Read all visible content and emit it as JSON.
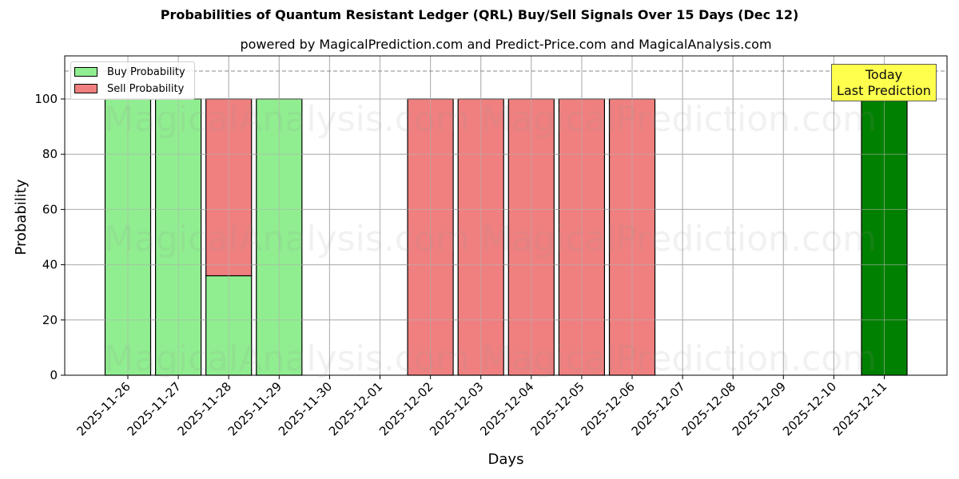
{
  "title": "Probabilities of Quantum Resistant Ledger (QRL) Buy/Sell Signals Over 15 Days (Dec 12)",
  "subtitle": "powered by MagicalPrediction.com and Predict-Price.com and MagicalAnalysis.com",
  "legend": {
    "buy_label": "Buy Probability",
    "sell_label": "Sell Probability"
  },
  "annotation": {
    "line1": "Today",
    "line2": "Last Prediction"
  },
  "watermarks": [
    "MagicalAnalysis.com",
    "MagicalPrediction.com"
  ],
  "colors": {
    "buy": "#90ee90",
    "sell": "#f08080",
    "today": "#008000",
    "annotation_bg": "#ffff44",
    "grid": "#b0b0b0"
  },
  "chart_data": {
    "type": "bar",
    "stacked": true,
    "title": "Probabilities of Quantum Resistant Ledger (QRL) Buy/Sell Signals Over 15 Days (Dec 12)",
    "subtitle": "powered by MagicalPrediction.com and Predict-Price.com and MagicalAnalysis.com",
    "xlabel": "Days",
    "ylabel": "Probability",
    "ylim": [
      0,
      115
    ],
    "yticks": [
      0,
      20,
      40,
      60,
      80,
      100
    ],
    "grid": true,
    "legend_position": "upper left",
    "reference_line": {
      "y": 110,
      "style": "dashed"
    },
    "categories": [
      "2025-11-26",
      "2025-11-27",
      "2025-11-28",
      "2025-11-29",
      "2025-11-30",
      "2025-12-01",
      "2025-12-02",
      "2025-12-03",
      "2025-12-04",
      "2025-12-05",
      "2025-12-06",
      "2025-12-07",
      "2025-12-08",
      "2025-12-09",
      "2025-12-10",
      "2025-12-11"
    ],
    "series": [
      {
        "name": "Buy Probability",
        "values": [
          100,
          100,
          36,
          100,
          0,
          0,
          0,
          0,
          0,
          0,
          0,
          0,
          0,
          0,
          0,
          100
        ]
      },
      {
        "name": "Sell Probability",
        "values": [
          0,
          0,
          64,
          0,
          0,
          0,
          100,
          100,
          100,
          100,
          100,
          0,
          0,
          0,
          0,
          0
        ]
      }
    ],
    "highlight": {
      "category": "2025-12-11",
      "label": "Today\nLast Prediction",
      "color": "#008000"
    }
  }
}
